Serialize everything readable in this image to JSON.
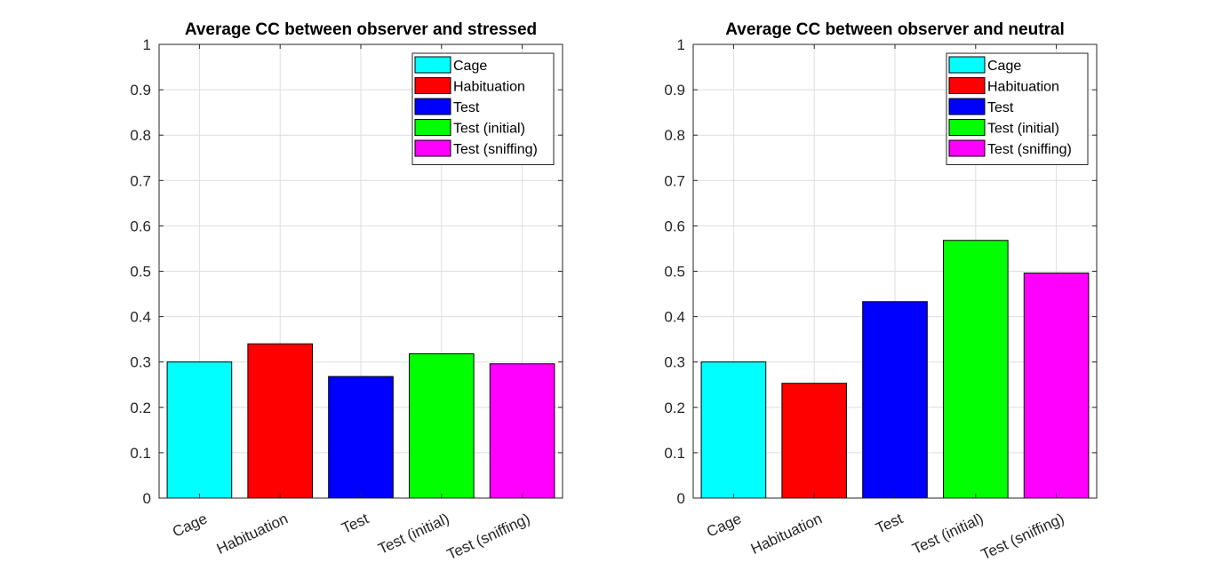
{
  "chart_data": [
    {
      "type": "bar",
      "title": "Average CC between observer and stressed",
      "categories": [
        "Cage",
        "Habituation",
        "Test",
        "Test (initial)",
        "Test (sniffing)"
      ],
      "values": [
        0.3,
        0.34,
        0.268,
        0.318,
        0.296
      ],
      "colors": [
        "#00ffff",
        "#ff0000",
        "#0000ff",
        "#00ff00",
        "#ff00ff"
      ],
      "ylim": [
        0,
        1
      ],
      "yticks": [
        "0",
        "0.1",
        "0.2",
        "0.3",
        "0.4",
        "0.5",
        "0.6",
        "0.7",
        "0.8",
        "0.9",
        "1"
      ],
      "grid": true,
      "legend": [
        "Cage",
        "Habituation",
        "Test",
        "Test (initial)",
        "Test (sniffing)"
      ],
      "legend_position": "top-right"
    },
    {
      "type": "bar",
      "title": "Average CC between observer and neutral",
      "categories": [
        "Cage",
        "Habituation",
        "Test",
        "Test (initial)",
        "Test (sniffing)"
      ],
      "values": [
        0.3,
        0.253,
        0.433,
        0.568,
        0.496
      ],
      "colors": [
        "#00ffff",
        "#ff0000",
        "#0000ff",
        "#00ff00",
        "#ff00ff"
      ],
      "ylim": [
        0,
        1
      ],
      "yticks": [
        "0",
        "0.1",
        "0.2",
        "0.3",
        "0.4",
        "0.5",
        "0.6",
        "0.7",
        "0.8",
        "0.9",
        "1"
      ],
      "grid": true,
      "legend": [
        "Cage",
        "Habituation",
        "Test",
        "Test (initial)",
        "Test (sniffing)"
      ],
      "legend_position": "top-right"
    }
  ]
}
